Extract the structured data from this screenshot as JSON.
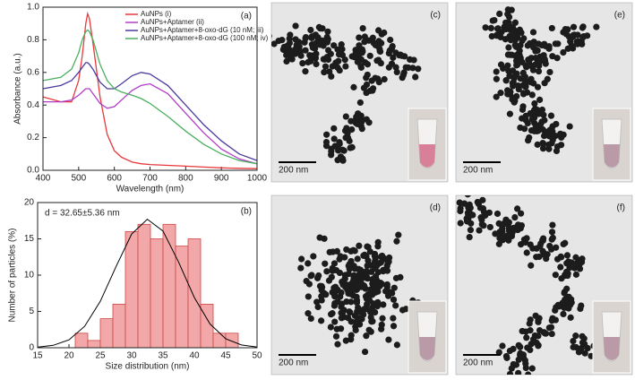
{
  "chart_data": [
    {
      "type": "line",
      "panel_label": "(a)",
      "xlabel": "Wavelength (nm)",
      "ylabel": "Absorbance (a.u.)",
      "x": [
        400,
        450,
        480,
        500,
        510,
        520,
        525,
        530,
        540,
        560,
        580,
        600,
        620,
        650,
        675,
        700,
        750,
        800,
        850,
        900,
        950,
        1000
      ],
      "series": [
        {
          "name": "AuNPs (i)",
          "color": "#e8383b",
          "values": [
            0.45,
            0.42,
            0.42,
            0.55,
            0.7,
            0.9,
            0.96,
            0.93,
            0.78,
            0.45,
            0.22,
            0.12,
            0.08,
            0.05,
            0.04,
            0.035,
            0.03,
            0.025,
            0.02,
            0.015,
            0.012,
            0.01
          ]
        },
        {
          "name": "AuNPs+Aptamer (ii)",
          "color": "#b23cc8",
          "values": [
            0.42,
            0.42,
            0.43,
            0.46,
            0.48,
            0.5,
            0.5,
            0.5,
            0.47,
            0.41,
            0.38,
            0.39,
            0.43,
            0.49,
            0.52,
            0.53,
            0.47,
            0.35,
            0.23,
            0.13,
            0.07,
            0.04
          ]
        },
        {
          "name": "AuNPs+Aptamer+8-oxo-dG (10 nM; iii)",
          "color": "#4b3a9e",
          "values": [
            0.5,
            0.52,
            0.55,
            0.6,
            0.63,
            0.66,
            0.66,
            0.65,
            0.62,
            0.54,
            0.5,
            0.5,
            0.53,
            0.58,
            0.6,
            0.59,
            0.52,
            0.4,
            0.28,
            0.18,
            0.1,
            0.06
          ]
        },
        {
          "name": "AuNPs+Aptamer+8-oxo-dG (100 nM; iv)",
          "color": "#4caf60",
          "values": [
            0.55,
            0.57,
            0.62,
            0.72,
            0.8,
            0.85,
            0.86,
            0.85,
            0.8,
            0.65,
            0.55,
            0.5,
            0.48,
            0.46,
            0.44,
            0.41,
            0.33,
            0.24,
            0.16,
            0.1,
            0.06,
            0.04
          ]
        }
      ],
      "xlim": [
        400,
        1000
      ],
      "xticks": [
        400,
        500,
        600,
        700,
        800,
        900,
        1000
      ],
      "ylim": [
        0,
        1.0
      ],
      "yticks": [
        {
          "value": 0,
          "label": "0.0"
        },
        0.2,
        0.4,
        0.6,
        0.8,
        {
          "value": 1.0,
          "label": "1.0"
        }
      ],
      "legend": "top-right"
    },
    {
      "type": "histogram",
      "panel_label": "(b)",
      "xlabel": "Size distribution (nm)",
      "ylabel": "Number of particles (%)",
      "annotation": "d = 32.65±5.36 nm",
      "bins": [
        21,
        23,
        25,
        27,
        29,
        31,
        33,
        35,
        37,
        39,
        41,
        43,
        45,
        47
      ],
      "values": [
        2,
        1,
        4,
        6,
        16,
        17,
        15,
        17,
        14,
        15,
        6,
        2,
        2
      ],
      "color": "#f2a8a8",
      "edge_color": "#d04545",
      "fit": {
        "color": "#000000",
        "x": [
          15,
          17.5,
          20,
          22.5,
          25,
          27.5,
          30,
          32.5,
          35,
          37.5,
          40,
          42.5,
          45,
          47.5,
          50
        ],
        "values": [
          0.08,
          0.33,
          1.09,
          2.95,
          6.39,
          11.16,
          15.67,
          17.7,
          16.08,
          11.76,
          6.91,
          3.27,
          1.24,
          0.38,
          0.09
        ]
      },
      "xlim": [
        15,
        50
      ],
      "xticks": [
        15,
        20,
        25,
        30,
        35,
        40,
        45,
        50
      ],
      "ylim": [
        0,
        20
      ],
      "yticks": [
        0,
        5,
        10,
        15,
        20
      ]
    }
  ],
  "panels": [
    {
      "label": "(c)",
      "scale": "200 nm"
    },
    {
      "label": "(e)",
      "scale": "200 nm"
    },
    {
      "label": "(d)",
      "scale": "200 nm"
    },
    {
      "label": "(f)",
      "scale": "200 nm"
    }
  ]
}
